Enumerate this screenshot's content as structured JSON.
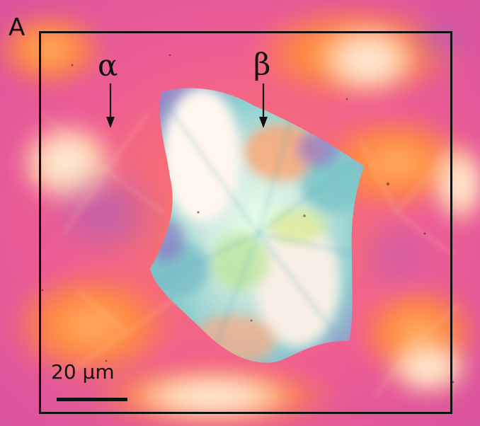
{
  "figure": {
    "panel_letter": "A",
    "labels": {
      "alpha": "α",
      "beta": "β"
    },
    "scale_bar": {
      "text": "20 µm"
    },
    "colors": {
      "magenta": "#d9539d",
      "pink": "#ef6a96",
      "orange": "#ff8a3d",
      "peach": "#ffc19b",
      "pale": "#f7efe0",
      "cyan": "#72c7c7",
      "purple": "#8d58c9",
      "black": "#111111"
    }
  }
}
